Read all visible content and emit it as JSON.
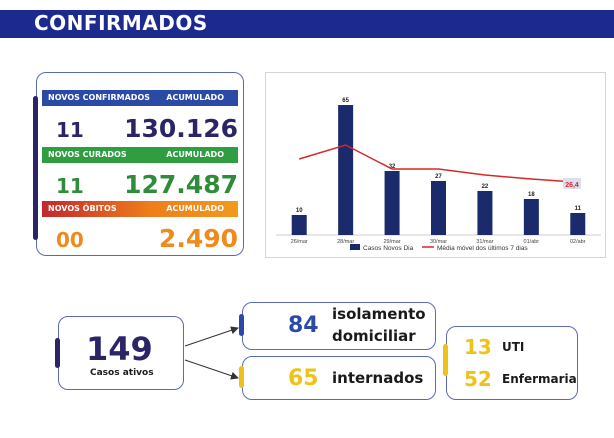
{
  "header": {
    "title": "CONFIRMADOS"
  },
  "stats": {
    "confirmed": {
      "label": "NOVOS CONFIRMADOS",
      "acc_label": "ACUMULADO",
      "new": "11",
      "accumulated": "130.126"
    },
    "cured": {
      "label": "NOVOS CURADOS",
      "acc_label": "ACUMULADO",
      "new": "11",
      "accumulated": "127.487"
    },
    "deaths": {
      "label": "NOVOS ÓBITOS",
      "acc_label": "ACUMULADO",
      "new": "00",
      "accumulated": "2.490"
    }
  },
  "colors": {
    "navy": "#1c2a8f",
    "blue_label": "#2b4aa8",
    "green_label": "#2f9e41",
    "orange_label": "#ef7d1a",
    "red_label": "#c0282d",
    "dark_purple": "#2b2567",
    "green_num": "#2f8c3a",
    "orange_num": "#ef8a1d",
    "yellow": "#efc21a",
    "bar": "#1b2a6b",
    "line": "#d62828"
  },
  "chart_data": {
    "type": "bar",
    "categories": [
      "26/mar",
      "28/mar",
      "29/mar",
      "30/mar",
      "31/mar",
      "01/abr",
      "02/abr"
    ],
    "series": [
      {
        "name": "Casos Novos Dia",
        "type": "bar",
        "values": [
          10,
          65,
          32,
          27,
          22,
          18,
          11
        ]
      },
      {
        "name": "Média móvel dos últimos 7 dias",
        "type": "line",
        "values": [
          38,
          45,
          33,
          33,
          30,
          28,
          26.4
        ]
      }
    ],
    "value_labels": [
      "10",
      "65",
      "32",
      "27",
      "22",
      "18",
      "11"
    ],
    "last_line_label": "26,4",
    "ylim": [
      0,
      72
    ],
    "legend": "bottom"
  },
  "summary": {
    "active": {
      "value": "149",
      "label": "Casos ativos"
    },
    "isolation": {
      "value": "84",
      "label_line1": "isolamento",
      "label_line2": "domiciliar"
    },
    "hospitalized": {
      "value": "65",
      "label": "internados"
    },
    "icu": {
      "value": "13",
      "label": "UTI"
    },
    "ward": {
      "value": "52",
      "label": "Enfermaria"
    }
  }
}
